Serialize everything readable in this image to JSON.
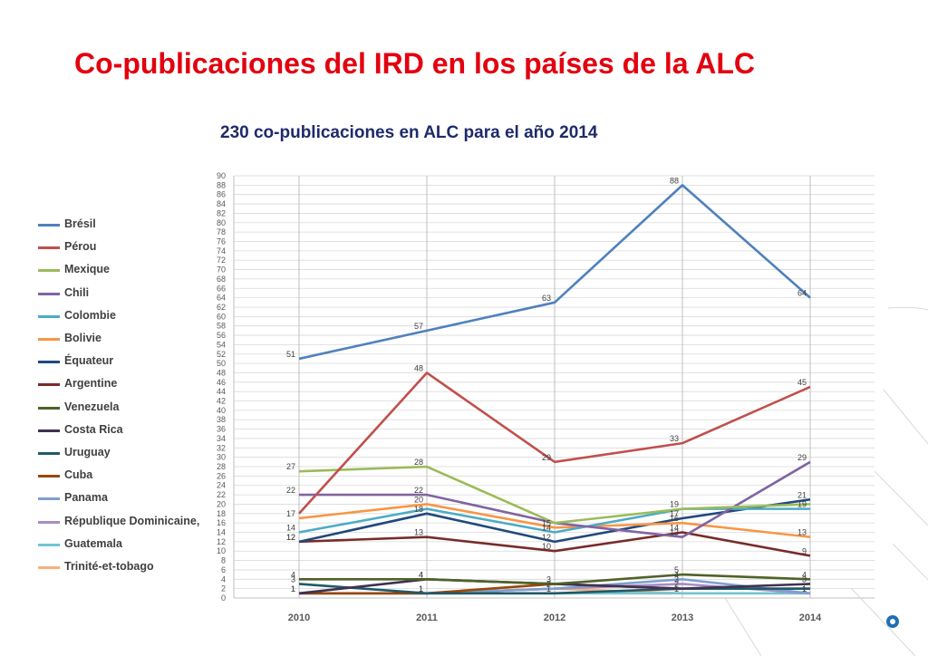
{
  "slide": {
    "title": "Co-publicaciones del IRD en los países de la ALC",
    "subtitle": "230 co-publicaciones en ALC para el año 2014"
  },
  "chart_data": {
    "type": "line",
    "title": "230 co-publicaciones en ALC para el año 2014",
    "xlabel": "",
    "ylabel": "",
    "categories": [
      "2010",
      "2011",
      "2012",
      "2013",
      "2014"
    ],
    "ylim": [
      0,
      90
    ],
    "y_tick_step": 2,
    "grid": true,
    "legend_position": "left",
    "series": [
      {
        "name": "Brésil",
        "color": "#4f81bd",
        "values": [
          51,
          57,
          63,
          88,
          64
        ],
        "labels": [
          "51",
          "57",
          "63",
          "88",
          "64"
        ]
      },
      {
        "name": "Pérou",
        "color": "#c0504d",
        "values": [
          18,
          48,
          29,
          33,
          45
        ],
        "labels": [
          "",
          "48",
          "29",
          "33",
          "45"
        ]
      },
      {
        "name": "Mexique",
        "color": "#9bbb59",
        "values": [
          27,
          28,
          16,
          19,
          20
        ],
        "labels": [
          "27",
          "28",
          "",
          "",
          ""
        ]
      },
      {
        "name": "Chili",
        "color": "#8064a2",
        "values": [
          22,
          22,
          16,
          13,
          29
        ],
        "labels": [
          "22",
          "22",
          "",
          "13",
          "29"
        ]
      },
      {
        "name": "Colombie",
        "color": "#4bacc6",
        "values": [
          14,
          19,
          14,
          19,
          19
        ],
        "labels": [
          "14",
          "",
          "14",
          "19",
          "19"
        ]
      },
      {
        "name": "Bolivie",
        "color": "#f79646",
        "values": [
          17,
          20,
          15,
          16,
          13
        ],
        "labels": [
          "17",
          "20",
          "15",
          "16",
          "13"
        ]
      },
      {
        "name": "Équateur",
        "color": "#1f497d",
        "values": [
          12,
          18,
          12,
          17,
          21
        ],
        "labels": [
          "12",
          "18",
          "12",
          "17",
          "21"
        ]
      },
      {
        "name": "Argentine",
        "color": "#772c2a",
        "values": [
          12,
          13,
          10,
          14,
          9
        ],
        "labels": [
          "12",
          "13",
          "10",
          "14",
          "9"
        ]
      },
      {
        "name": "Venezuela",
        "color": "#4f6228",
        "values": [
          4,
          4,
          3,
          5,
          4
        ],
        "labels": [
          "4",
          "4",
          "3",
          "5",
          "4"
        ]
      },
      {
        "name": "Costa Rica",
        "color": "#3f3151",
        "values": [
          1,
          4,
          3,
          2,
          3
        ],
        "labels": [
          "",
          "4",
          "",
          "2",
          "3"
        ]
      },
      {
        "name": "Uruguay",
        "color": "#215968",
        "values": [
          3,
          1,
          1,
          2,
          2
        ],
        "labels": [
          "3",
          "1",
          "1",
          "",
          ""
        ]
      },
      {
        "name": "Cuba",
        "color": "#984807",
        "values": [
          1,
          1,
          3,
          2,
          2
        ],
        "labels": [
          "1",
          "1",
          "",
          "",
          ""
        ]
      },
      {
        "name": "Panama",
        "color": "#7f9fcf",
        "values": [
          1,
          1,
          2,
          4,
          1
        ],
        "labels": [
          "",
          "",
          "2",
          "4",
          "1"
        ]
      },
      {
        "name": "République Dominicaine,",
        "color": "#a68cc4",
        "values": [
          1,
          1,
          2,
          3,
          1
        ],
        "labels": [
          "",
          "",
          "",
          "3",
          ""
        ]
      },
      {
        "name": "Guatemala",
        "color": "#72c4d6",
        "values": [
          1,
          1,
          1,
          1,
          1
        ],
        "labels": [
          "",
          "",
          "",
          "1",
          "1"
        ]
      },
      {
        "name": "Trinité-et-tobago",
        "color": "#f9b07a",
        "values": [
          1,
          1,
          2,
          1,
          1
        ],
        "labels": [
          "1",
          "",
          "",
          "",
          ""
        ]
      }
    ]
  }
}
